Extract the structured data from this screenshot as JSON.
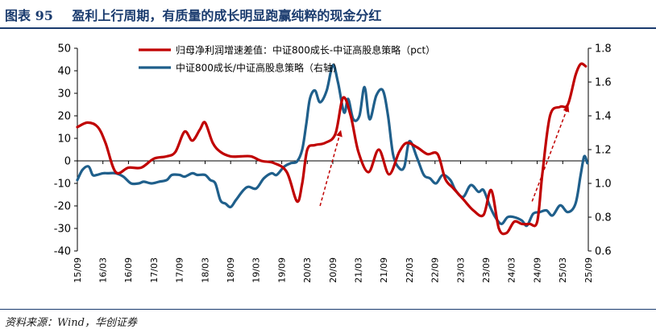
{
  "header": {
    "figure_label": "图表 95",
    "title": "盈利上行周期，有质量的成长明显跑赢纯粹的现金分红"
  },
  "source": "资料来源：Wind，华创证券",
  "chart_data": {
    "type": "line",
    "title": "图表 95 盈利上行周期，有质量的成长明显跑赢纯粹的现金分红",
    "x_tick_labels": [
      "15/09",
      "16/03",
      "16/09",
      "17/03",
      "17/09",
      "18/03",
      "18/09",
      "19/03",
      "19/09",
      "20/03",
      "20/09",
      "21/03",
      "21/09",
      "22/03",
      "22/09",
      "23/03",
      "23/09",
      "24/03",
      "24/09",
      "25/03",
      "25/09"
    ],
    "y_left": {
      "ylim": [
        -40,
        50
      ],
      "ticks": [
        -40,
        -30,
        -20,
        -10,
        0,
        10,
        20,
        30,
        40,
        50
      ]
    },
    "y_right": {
      "ylim": [
        0.6,
        1.8
      ],
      "ticks": [
        0.6,
        0.8,
        1.0,
        1.2,
        1.4,
        1.6,
        1.8
      ]
    },
    "legend_position": "top-center",
    "series": [
      {
        "name": "归母净利润增速差值：中证800成长-中证高股息策略（pct）",
        "axis": "left",
        "color": "#c00000",
        "x": [
          2015.7,
          2015.9,
          2016.1,
          2016.25,
          2016.45,
          2016.7,
          2016.95,
          2017.2,
          2017.45,
          2017.62,
          2017.8,
          2017.95,
          2018.1,
          2018.2,
          2018.35,
          2018.5,
          2018.7,
          2018.9,
          2019.1,
          2019.3,
          2019.55,
          2019.8,
          2020.0,
          2020.1,
          2020.2,
          2020.35,
          2020.55,
          2020.75,
          2020.9,
          2021.05,
          2021.2,
          2021.4,
          2021.6,
          2021.8,
          2022.0,
          2022.15,
          2022.35,
          2022.55,
          2022.75,
          2022.9,
          2023.05,
          2023.25,
          2023.45,
          2023.65,
          2023.8,
          2023.95,
          2024.1,
          2024.25,
          2024.4,
          2024.55,
          2024.7,
          2024.8,
          2024.95,
          2025.15,
          2025.3,
          2025.45,
          2025.55,
          2025.65
        ],
        "values": [
          15,
          17,
          15,
          8,
          -5,
          -3,
          -3,
          1,
          2,
          4,
          13,
          9,
          14,
          17,
          8,
          4,
          2,
          2,
          2,
          0,
          -1,
          -5,
          -18,
          -10,
          5,
          7,
          8,
          12,
          28,
          20,
          4,
          -5,
          5,
          -6,
          4,
          8,
          6,
          3,
          3,
          -8,
          -12,
          -17,
          -22,
          -24,
          -13,
          -30,
          -32,
          -27,
          -28,
          -28,
          -27,
          -6,
          20,
          24,
          25,
          38,
          43,
          42
        ]
      },
      {
        "name": "中证800成长/中证高股息策略（右轴）",
        "axis": "right",
        "color": "#1f5f8b",
        "x": [
          2015.7,
          2015.8,
          2015.92,
          2016.0,
          2016.08,
          2016.2,
          2016.3,
          2016.45,
          2016.6,
          2016.75,
          2016.9,
          2017.0,
          2017.15,
          2017.3,
          2017.45,
          2017.55,
          2017.7,
          2017.8,
          2017.95,
          2018.05,
          2018.2,
          2018.3,
          2018.4,
          2018.5,
          2018.6,
          2018.7,
          2018.8,
          2018.95,
          2019.05,
          2019.2,
          2019.35,
          2019.5,
          2019.6,
          2019.75,
          2019.88,
          2020.0,
          2020.1,
          2020.18,
          2020.25,
          2020.35,
          2020.45,
          2020.58,
          2020.7,
          2020.8,
          2020.92,
          2021.0,
          2021.1,
          2021.22,
          2021.32,
          2021.42,
          2021.55,
          2021.68,
          2021.78,
          2021.88,
          2022.0,
          2022.1,
          2022.2,
          2022.35,
          2022.48,
          2022.6,
          2022.72,
          2022.85,
          2023.0,
          2023.1,
          2023.25,
          2023.4,
          2023.55,
          2023.65,
          2023.78,
          2023.88,
          2024.0,
          2024.12,
          2024.25,
          2024.4,
          2024.5,
          2024.62,
          2024.75,
          2024.88,
          2025.0,
          2025.15,
          2025.3,
          2025.45,
          2025.55,
          2025.62,
          2025.68
        ],
        "values": [
          1.02,
          1.08,
          1.1,
          1.05,
          1.05,
          1.06,
          1.06,
          1.06,
          1.04,
          1.0,
          1.0,
          1.01,
          1.0,
          1.01,
          1.02,
          1.05,
          1.05,
          1.04,
          1.06,
          1.05,
          1.05,
          1.02,
          1.0,
          0.9,
          0.88,
          0.86,
          0.9,
          0.96,
          0.98,
          0.97,
          1.03,
          1.06,
          1.05,
          1.1,
          1.12,
          1.13,
          1.2,
          1.35,
          1.5,
          1.55,
          1.48,
          1.55,
          1.7,
          1.6,
          1.42,
          1.5,
          1.38,
          1.4,
          1.57,
          1.38,
          1.52,
          1.55,
          1.4,
          1.17,
          1.09,
          1.1,
          1.25,
          1.15,
          1.05,
          1.03,
          1.0,
          1.05,
          1.02,
          0.96,
          0.92,
          0.99,
          0.95,
          0.96,
          0.86,
          0.8,
          0.76,
          0.8,
          0.8,
          0.78,
          0.75,
          0.82,
          0.83,
          0.84,
          0.81,
          0.87,
          0.83,
          0.88,
          1.05,
          1.16,
          1.12
        ]
      }
    ],
    "annotations": [
      {
        "type": "arrow",
        "color": "#c00000",
        "style": "dashed",
        "from": [
          2020.45,
          -20
        ],
        "to": [
          2020.85,
          13
        ]
      },
      {
        "type": "arrow",
        "color": "#c00000",
        "style": "dashed",
        "from": [
          2024.6,
          -18
        ],
        "to": [
          2025.3,
          24
        ]
      }
    ]
  }
}
